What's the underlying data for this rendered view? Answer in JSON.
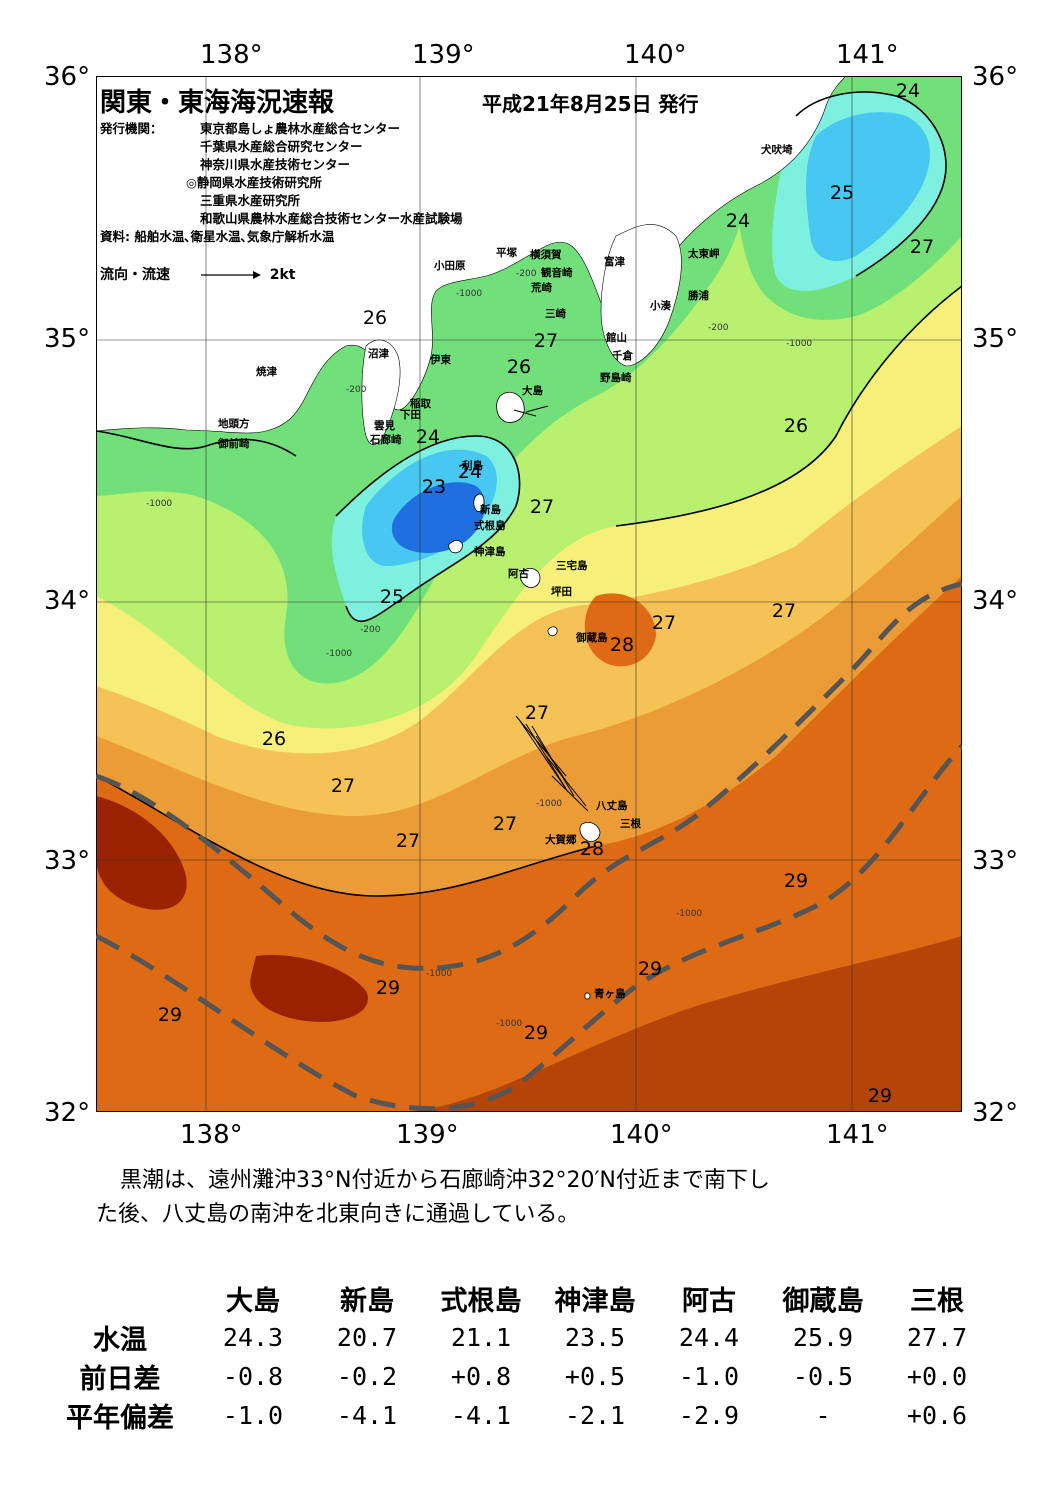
{
  "lon_labels": [
    "138°",
    "139°",
    "140°",
    "141°"
  ],
  "lat_labels": [
    "36°",
    "35°",
    "34°",
    "33°",
    "32°"
  ],
  "title": "関東・東海海況速報",
  "issued": "平成21年8月25日 発行",
  "agency_label": "発行機関：",
  "agencies": [
    "東京都島しょ農林水産総合センター",
    "千葉県水産総合研究センター",
    "神奈川県水産技術センター",
    "◎静岡県水産技術研究所",
    "三重県水産研究所",
    "和歌山県農林水産総合技術センター水産試験場"
  ],
  "source": "資料: 船舶水温､衛星水温､気象庁解析水温",
  "legend_label": "流向・流速",
  "legend_speed": "2kt",
  "place_names": {
    "inubosaki": "犬吠埼",
    "taitozaki": "太東岬",
    "katsuura": "勝浦",
    "kominato": "小湊",
    "futtsu": "富津",
    "tateyama": "館山",
    "chikura": "千倉",
    "nojimazaki": "野島崎",
    "yokosuka": "横須賀",
    "kannonzaki": "観音崎",
    "hiratsuka": "平塚",
    "odawara": "小田原",
    "araizaki": "荒崎",
    "misaki": "三崎",
    "oshima_p": "大島",
    "ito": "伊東",
    "inatori": "稲取",
    "shimoda": "下田",
    "kumomi": "雲見",
    "irozaki": "石廊崎",
    "numazu": "沼津",
    "yaizu": "焼津",
    "jitogata": "地頭方",
    "omaezaki": "御前崎",
    "toshima": "利島",
    "niijima_p": "新島",
    "shikine_p": "式根島",
    "kozu_p": "神津島",
    "miyake": "三宅島",
    "ako_p": "阿古",
    "tsubota": "坪田",
    "mikura_p": "御蔵島",
    "hachijo": "八丈島",
    "mine_p": "三根",
    "okago": "大賀郷",
    "aogashima": "青ヶ島"
  },
  "temp_labels": [
    "24",
    "25",
    "24",
    "27",
    "27",
    "26",
    "26",
    "27",
    "26",
    "24",
    "24",
    "23",
    "27",
    "25",
    "28",
    "27",
    "27",
    "28",
    "26",
    "27",
    "27",
    "27",
    "28",
    "29",
    "29",
    "29",
    "29",
    "29",
    "29"
  ],
  "depth_labels": [
    "-200",
    "-1000"
  ],
  "summary_line1": "黒潮は、遠州灘沖33°N付近から石廊崎沖32°20′N付近まで南下し",
  "summary_line2": "た後、八丈島の南沖を北東向きに通過している。",
  "table": {
    "columns": [
      "大島",
      "新島",
      "式根島",
      "神津島",
      "阿古",
      "御蔵島",
      "三根"
    ],
    "rows": [
      {
        "label": "水温",
        "values": [
          "24.3",
          "20.7",
          "21.1",
          "23.5",
          "24.4",
          "25.9",
          "27.7"
        ]
      },
      {
        "label": "前日差",
        "values": [
          "-0.8",
          "-0.2",
          "+0.8",
          "+0.5",
          "-1.0",
          "-0.5",
          "+0.0"
        ]
      },
      {
        "label": "平年偏差",
        "values": [
          "-1.0",
          "-4.1",
          "-4.1",
          "-2.1",
          "-2.9",
          "-",
          "+0.6"
        ]
      }
    ]
  },
  "colors": {
    "c23": "#1f6fe0",
    "c24": "#46c8f0",
    "c25": "#7ef0e0",
    "c26": "#72e07a",
    "c265": "#b8f070",
    "c27": "#f6f07a",
    "c275": "#f5c255",
    "c28": "#ec9c36",
    "c285": "#de6a14",
    "c29": "#b54408",
    "c295": "#9a2200",
    "land": "#ffffff",
    "kuroshio": "#555555"
  }
}
